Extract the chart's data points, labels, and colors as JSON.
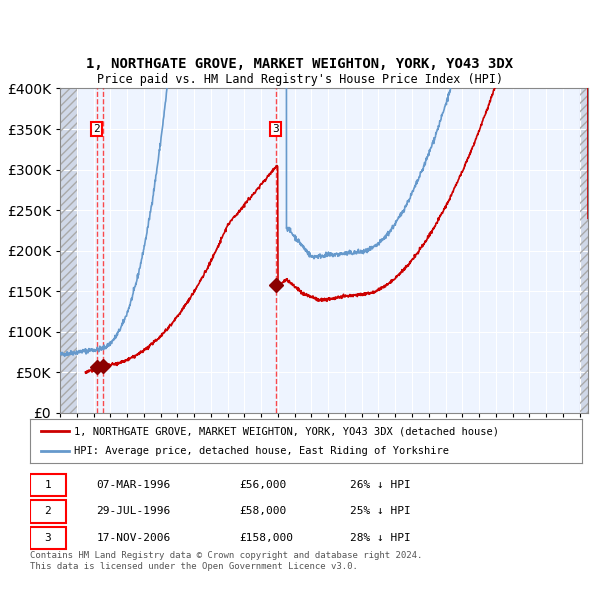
{
  "title": "1, NORTHGATE GROVE, MARKET WEIGHTON, YORK, YO43 3DX",
  "subtitle": "Price paid vs. HM Land Registry's House Price Index (HPI)",
  "legend_line1": "1, NORTHGATE GROVE, MARKET WEIGHTON, YORK, YO43 3DX (detached house)",
  "legend_line2": "HPI: Average price, detached house, East Riding of Yorkshire",
  "transactions": [
    {
      "num": 1,
      "date": "07-MAR-1996",
      "price": 56000,
      "pct": "26%",
      "dir": "↓",
      "x_year": 1996.18
    },
    {
      "num": 2,
      "date": "29-JUL-1996",
      "price": 58000,
      "pct": "25%",
      "dir": "↓",
      "x_year": 1996.57
    },
    {
      "num": 3,
      "date": "17-NOV-2006",
      "price": 158000,
      "pct": "28%",
      "dir": "↓",
      "x_year": 2006.88
    }
  ],
  "vline_x": [
    1996.18,
    1996.57,
    2006.88
  ],
  "footnote1": "Contains HM Land Registry data © Crown copyright and database right 2024.",
  "footnote2": "This data is licensed under the Open Government Licence v3.0.",
  "red_color": "#cc0000",
  "blue_color": "#6699cc",
  "bg_color": "#ddeeff",
  "plot_bg": "#eef4ff",
  "hatch_bg": "#d0d8e8",
  "ylim": [
    0,
    400000
  ],
  "xlim_start": 1994.0,
  "xlim_end": 2025.5
}
